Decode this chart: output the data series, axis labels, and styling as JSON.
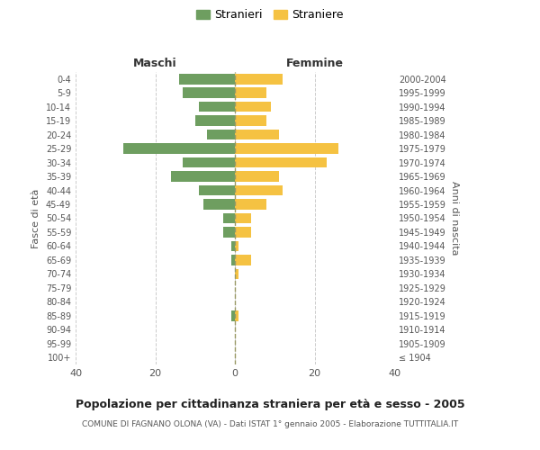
{
  "age_groups": [
    "100+",
    "95-99",
    "90-94",
    "85-89",
    "80-84",
    "75-79",
    "70-74",
    "65-69",
    "60-64",
    "55-59",
    "50-54",
    "45-49",
    "40-44",
    "35-39",
    "30-34",
    "25-29",
    "20-24",
    "15-19",
    "10-14",
    "5-9",
    "0-4"
  ],
  "birth_years": [
    "≤ 1904",
    "1905-1909",
    "1910-1914",
    "1915-1919",
    "1920-1924",
    "1925-1929",
    "1930-1934",
    "1935-1939",
    "1940-1944",
    "1945-1949",
    "1950-1954",
    "1955-1959",
    "1960-1964",
    "1965-1969",
    "1970-1974",
    "1975-1979",
    "1980-1984",
    "1985-1989",
    "1990-1994",
    "1995-1999",
    "2000-2004"
  ],
  "maschi": [
    0,
    0,
    0,
    1,
    0,
    0,
    0,
    1,
    1,
    3,
    3,
    8,
    9,
    16,
    13,
    28,
    7,
    10,
    9,
    13,
    14
  ],
  "femmine": [
    0,
    0,
    0,
    1,
    0,
    0,
    1,
    4,
    1,
    4,
    4,
    8,
    12,
    11,
    23,
    26,
    11,
    8,
    9,
    8,
    12
  ],
  "maschi_color": "#6e9e60",
  "femmine_color": "#f5c242",
  "title": "Popolazione per cittadinanza straniera per età e sesso - 2005",
  "subtitle": "COMUNE DI FAGNANO OLONA (VA) - Dati ISTAT 1° gennaio 2005 - Elaborazione TUTTITALIA.IT",
  "legend_maschi": "Stranieri",
  "legend_femmine": "Straniere",
  "xlabel_left": "Maschi",
  "xlabel_right": "Femmine",
  "ylabel_left": "Fasce di età",
  "ylabel_right": "Anni di nascita",
  "xlim": 40,
  "background_color": "#ffffff",
  "grid_color": "#cccccc",
  "text_color": "#555555"
}
